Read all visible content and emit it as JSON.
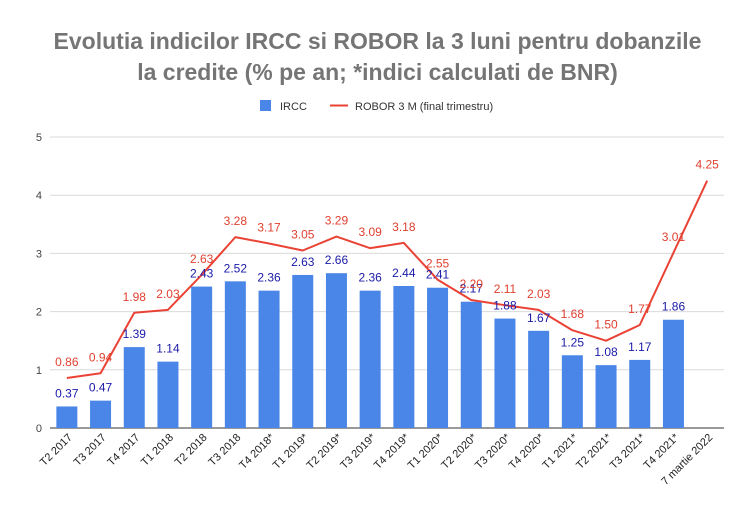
{
  "title_lines": [
    "Evolutia indicilor IRCC si ROBOR la 3 luni pentru dobanzile",
    "la credite (% pe an; *indici calculati de BNR)"
  ],
  "colors": {
    "bar": "#4a86e8",
    "line": "#ea4335",
    "grid": "#d9d9d9",
    "bar_label": "#1a1aa8",
    "line_label": "#e04030"
  },
  "chart_data": {
    "type": "bar",
    "title": "Evolutia indicilor IRCC si ROBOR la 3 luni pentru dobanzile la credite (% pe an; *indici calculati de BNR)",
    "categories": [
      "T2 2017",
      "T3 2017",
      "T4 2017",
      "T1 2018",
      "T2 2018",
      "T3 2018",
      "T4 2018*",
      "T1 2019*",
      "T2 2019*",
      "T3 2019*",
      "T4 2019*",
      "T1 2020*",
      "T2 2020*",
      "T3 2020*",
      "T4 2020*",
      "T1 2021*",
      "T2 2021*",
      "T3 2021*",
      "T4 2021*",
      "7 martie 2022"
    ],
    "series": [
      {
        "name": "IRCC",
        "kind": "bar",
        "values": [
          0.37,
          0.47,
          1.39,
          1.14,
          2.43,
          2.52,
          2.36,
          2.63,
          2.66,
          2.36,
          2.44,
          2.41,
          2.17,
          1.88,
          1.67,
          1.25,
          1.08,
          1.17,
          1.86,
          null
        ],
        "labels": [
          "0.37",
          "0.47",
          "1.39",
          "1.14",
          "2.43",
          "2.52",
          "2.36",
          "2.63",
          "2.66",
          "2.36",
          "2.44",
          "2.41",
          "2.17",
          "1.88",
          "1.67",
          "1.25",
          "1.08",
          "1.17",
          "1.86",
          ""
        ]
      },
      {
        "name": "ROBOR 3 M (final trimestru)",
        "kind": "line",
        "values": [
          0.86,
          0.94,
          1.98,
          2.03,
          2.63,
          3.28,
          3.17,
          3.05,
          3.29,
          3.09,
          3.18,
          2.55,
          2.2,
          2.11,
          2.03,
          1.68,
          1.5,
          1.77,
          3.01,
          4.25
        ],
        "labels": [
          "0.86",
          "0.94",
          "1.98",
          "2.03",
          "2.63",
          "3.28",
          "3.17",
          "3.05",
          "3.29",
          "3.09",
          "3.18",
          "2.55",
          "2.20",
          "2.11",
          "2.03",
          "1.68",
          "1.50",
          "1.77",
          "3.01",
          "4.25"
        ]
      }
    ],
    "yticks": [
      "0",
      "1",
      "2",
      "3",
      "4",
      "5"
    ],
    "ylim": [
      0,
      5
    ],
    "legend_position": "top-center",
    "grid": true
  }
}
